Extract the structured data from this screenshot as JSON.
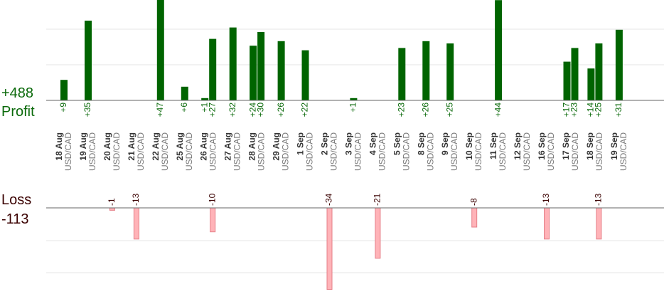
{
  "summary": {
    "profit_total": "+488",
    "profit_label": "Profit",
    "loss_label": "Loss",
    "loss_total": "-113"
  },
  "colors": {
    "profit_bar": "#006400",
    "profit_text": "#0b6a0b",
    "loss_fill": "#ffb3b8",
    "loss_stroke": "#e57f88",
    "loss_text": "#3a0000",
    "axis": "#666666",
    "grid": "#e6e6e6"
  },
  "chart_data": {
    "type": "bar",
    "grid": true,
    "pair_label": "USD/CAD",
    "ticks": [
      {
        "date": "18 Aug",
        "pair": "USD/CAD"
      },
      {
        "date": "19 Aug",
        "pair": "USD/CAD"
      },
      {
        "date": "20 Aug",
        "pair": "USD/CAD"
      },
      {
        "date": "21 Aug",
        "pair": "USD/CAD"
      },
      {
        "date": "22 Aug",
        "pair": "USD/CAD"
      },
      {
        "date": "25 Aug",
        "pair": "USD/CAD"
      },
      {
        "date": "26 Aug",
        "pair": "USD/CAD"
      },
      {
        "date": "27 Aug",
        "pair": "USD/CAD"
      },
      {
        "date": "28 Aug",
        "pair": "USD/CAD"
      },
      {
        "date": "29 Aug",
        "pair": "USD/CAD"
      },
      {
        "date": "1 Sep",
        "pair": "USD/CAD"
      },
      {
        "date": "2 Sep",
        "pair": "USD/CAD"
      },
      {
        "date": "3 Sep",
        "pair": "USD/CAD"
      },
      {
        "date": "4 Sep",
        "pair": "USD/CAD"
      },
      {
        "date": "5 Sep",
        "pair": "USD/CAD"
      },
      {
        "date": "8 Sep",
        "pair": "USD/CAD"
      },
      {
        "date": "9 Sep",
        "pair": "USD/CAD"
      },
      {
        "date": "10 Sep",
        "pair": "USD/CAD"
      },
      {
        "date": "11 Sep",
        "pair": "USD/CAD"
      },
      {
        "date": "12 Sep",
        "pair": "USD/CAD"
      },
      {
        "date": "16 Sep",
        "pair": "USD/CAD"
      },
      {
        "date": "17 Sep",
        "pair": "USD/CAD"
      },
      {
        "date": "18 Sep",
        "pair": "USD/CAD"
      },
      {
        "date": "19 Sep",
        "pair": "USD/CAD"
      }
    ],
    "profits": [
      {
        "day": 0,
        "slot": 0,
        "value": 9
      },
      {
        "day": 1,
        "slot": 0,
        "value": 35
      },
      {
        "day": 4,
        "slot": 0,
        "value": 47
      },
      {
        "day": 5,
        "slot": 0,
        "value": 6
      },
      {
        "day": 6,
        "slot": 0,
        "value": 1
      },
      {
        "day": 6,
        "slot": 1,
        "value": 27
      },
      {
        "day": 7,
        "slot": 0,
        "value": 32
      },
      {
        "day": 8,
        "slot": 0,
        "value": 24
      },
      {
        "day": 8,
        "slot": 1,
        "value": 30
      },
      {
        "day": 9,
        "slot": 0,
        "value": 26
      },
      {
        "day": 10,
        "slot": 0,
        "value": 22
      },
      {
        "day": 12,
        "slot": 0,
        "value": 1
      },
      {
        "day": 14,
        "slot": 0,
        "value": 23
      },
      {
        "day": 15,
        "slot": 0,
        "value": 26
      },
      {
        "day": 16,
        "slot": 0,
        "value": 25
      },
      {
        "day": 18,
        "slot": 0,
        "value": 44
      },
      {
        "day": 21,
        "slot": 0,
        "value": 17
      },
      {
        "day": 21,
        "slot": 1,
        "value": 23
      },
      {
        "day": 22,
        "slot": 0,
        "value": 14
      },
      {
        "day": 22,
        "slot": 1,
        "value": 25
      },
      {
        "day": 23,
        "slot": 0,
        "value": 31
      }
    ],
    "losses": [
      {
        "day": 2,
        "slot": 0,
        "value": -1
      },
      {
        "day": 3,
        "slot": 0,
        "value": -13
      },
      {
        "day": 6,
        "slot": 1,
        "value": -10
      },
      {
        "day": 11,
        "slot": 0,
        "value": -34
      },
      {
        "day": 13,
        "slot": 0,
        "value": -21
      },
      {
        "day": 17,
        "slot": 0,
        "value": -8
      },
      {
        "day": 20,
        "slot": 0,
        "value": -13
      },
      {
        "day": 22,
        "slot": 1,
        "value": -13
      }
    ]
  }
}
